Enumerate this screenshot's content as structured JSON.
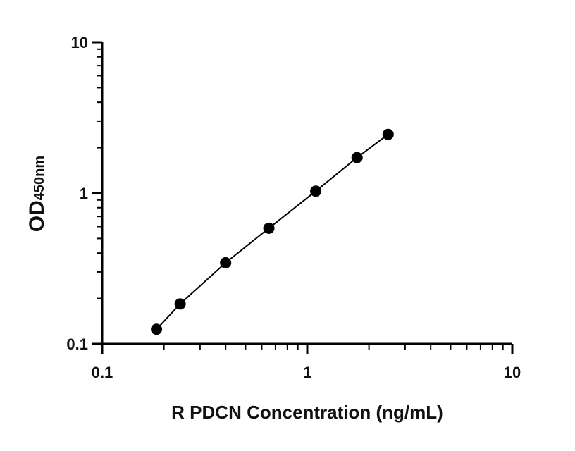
{
  "chart_data": {
    "type": "scatter",
    "title": "",
    "xlabel": "R PDCN Concentration (ng/mL)",
    "ylabel": "OD",
    "ylabel_subscript": "450nm",
    "x_scale": "log",
    "y_scale": "log",
    "xlim": [
      0.1,
      10
    ],
    "ylim": [
      0.1,
      10
    ],
    "x_ticks": [
      "0.1",
      "1",
      "10"
    ],
    "y_ticks": [
      "0.1",
      "1",
      "10"
    ],
    "grid": false,
    "legend": "none",
    "series": [
      {
        "x": [
          0.184,
          0.24,
          0.4,
          0.65,
          1.1,
          1.75,
          2.48
        ],
        "y": [
          0.125,
          0.184,
          0.345,
          0.585,
          1.03,
          1.72,
          2.45
        ],
        "marker": "circle",
        "fit_line": true,
        "color": "#000000"
      }
    ]
  }
}
